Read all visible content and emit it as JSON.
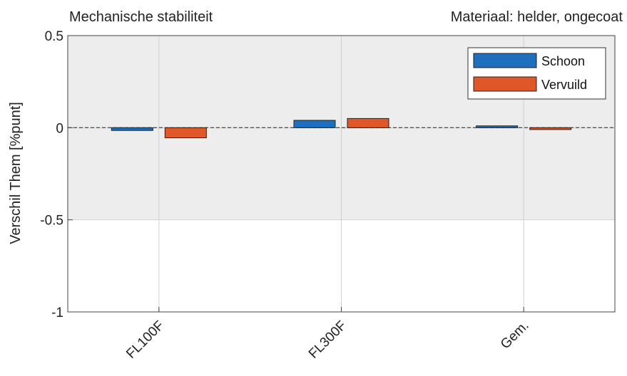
{
  "chart_data": {
    "type": "bar",
    "title": "Mechanische stabiliteit",
    "subtitle": "Materiaal: helder, ongecoat",
    "xlabel": "",
    "ylabel": "Verschil Them [%punt]",
    "ylim": [
      -1,
      0.5
    ],
    "yticks": [
      0.5,
      0,
      -0.5,
      -1
    ],
    "ytick_labels": [
      "0.5",
      "0",
      "-0.5",
      "-1"
    ],
    "categories": [
      "FL100F",
      "FL300F",
      "Gem."
    ],
    "shaded_band": [
      -0.5,
      0.5
    ],
    "zero_line": "dashed",
    "grid": true,
    "legend_position": "top-right",
    "series": [
      {
        "name": "Schoon",
        "color": "#1f6fbf",
        "values": [
          -0.015,
          0.04,
          0.01
        ]
      },
      {
        "name": "Vervuild",
        "color": "#e0582a",
        "values": [
          -0.055,
          0.05,
          -0.01
        ]
      }
    ]
  }
}
